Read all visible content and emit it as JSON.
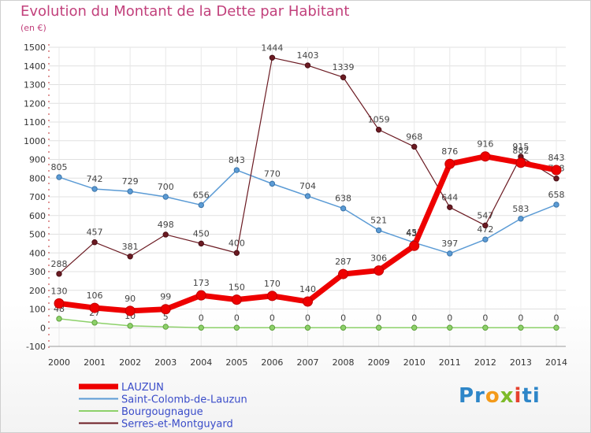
{
  "title": "Evolution du Montant de la Dette par Habitant",
  "subtitle": "(en €)",
  "logo_text": "Proxiti",
  "chart_data": {
    "type": "line",
    "title": "Evolution du Montant de la Dette par Habitant",
    "ylabel": "(en €)",
    "xlabel": "",
    "ylim": [
      -100,
      1500
    ],
    "yticks": [
      -100,
      0,
      100,
      200,
      300,
      400,
      500,
      600,
      700,
      800,
      900,
      1000,
      1100,
      1200,
      1300,
      1400,
      1500
    ],
    "x": [
      "2000",
      "2001",
      "2002",
      "2003",
      "2004",
      "2005",
      "2006",
      "2007",
      "2008",
      "2009",
      "2010",
      "2011",
      "2012",
      "2013",
      "2014"
    ],
    "grid": true,
    "legend_position": "bottom-left",
    "series": [
      {
        "name": "LAUZUN",
        "color": "#ee0000",
        "values": [
          130,
          106,
          90,
          99,
          173,
          150,
          170,
          140,
          287,
          306,
          438,
          876,
          916,
          882,
          843
        ]
      },
      {
        "name": "Saint-Colomb-de-Lauzun",
        "color": "#5b9bd5",
        "values": [
          805,
          742,
          729,
          700,
          656,
          843,
          770,
          704,
          638,
          521,
          455,
          397,
          472,
          583,
          658
        ]
      },
      {
        "name": "Bourgougnague",
        "color": "#8dd16a",
        "values": [
          48,
          27,
          10,
          5,
          0,
          0,
          0,
          0,
          0,
          0,
          0,
          0,
          0,
          0,
          0
        ]
      },
      {
        "name": "Serres-et-Montguyard",
        "color": "#6b1a22",
        "values": [
          288,
          457,
          381,
          498,
          450,
          400,
          1444,
          1403,
          1339,
          1059,
          968,
          644,
          547,
          915,
          798
        ]
      }
    ],
    "value_labels": [
      [
        "130",
        "106",
        "90",
        "99",
        "173",
        "150",
        "170",
        "140",
        "287",
        "306",
        "438",
        "876",
        "916",
        "882",
        "843"
      ],
      [
        "805",
        "742",
        "729",
        "700",
        "656",
        "843",
        "770",
        "704",
        "638",
        "521",
        "455",
        "397",
        "472",
        "583",
        "658"
      ],
      [
        "48",
        "27",
        "10",
        "5",
        "0",
        "0",
        "0",
        "0",
        "0",
        "0",
        "0",
        "0",
        "0",
        "0",
        "0"
      ],
      [
        "288",
        "457",
        "381",
        "498",
        "450",
        "400",
        "1444",
        "1403",
        "1339",
        "1059",
        "968",
        "644",
        "547",
        "915",
        "798"
      ]
    ]
  }
}
